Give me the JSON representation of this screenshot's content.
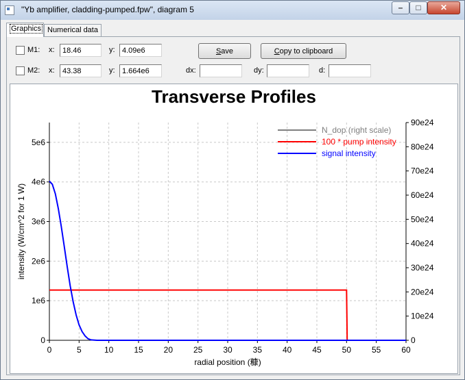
{
  "window": {
    "title": "\"Yb amplifier, cladding-pumped.fpw\", diagram 5",
    "min_glyph": "–",
    "max_glyph": "□",
    "close_glyph": "✕"
  },
  "tabs": [
    {
      "label": "Graphics"
    },
    {
      "label": "Numerical data"
    }
  ],
  "markers": {
    "m1": {
      "label": "M1:",
      "x_label": "x:",
      "x_value": "18.46",
      "y_label": "y:",
      "y_value": "4.09e6"
    },
    "m2": {
      "label": "M2:",
      "x_label": "x:",
      "x_value": "43.38",
      "y_label": "y:",
      "y_value": "1.664e6"
    },
    "dx_label": "dx:",
    "dy_label": "dy:",
    "d_label": "d:",
    "dx_value": "",
    "dy_value": "",
    "d_value": ""
  },
  "buttons": {
    "save_prefix": "",
    "save_underline": "S",
    "save_rest": "ave",
    "copy_prefix": "",
    "copy_underline": "C",
    "copy_rest": "opy to clipboard"
  },
  "chart_data": {
    "type": "line",
    "title": "Transverse Profiles",
    "xlabel": "radial position (糠)",
    "ylabel": "intensity (W/cm^2 for 1 W)",
    "xlim": [
      0,
      60
    ],
    "ylim": [
      0,
      5500000
    ],
    "y2lim": [
      0,
      9e+25
    ],
    "grid": true,
    "legend_position": "top-right",
    "x_ticks": [
      "0",
      "5",
      "10",
      "15",
      "20",
      "25",
      "30",
      "35",
      "40",
      "45",
      "50",
      "55",
      "60"
    ],
    "y_ticks": [
      "0",
      "1e6",
      "2e6",
      "3e6",
      "4e6",
      "5e6"
    ],
    "y2_ticks": [
      "0",
      "10e24",
      "20e24",
      "30e24",
      "40e24",
      "50e24",
      "60e24",
      "70e24",
      "80e24",
      "90e24"
    ],
    "series": [
      {
        "name": "N_dop (right scale)",
        "color": "#7f7f7f",
        "axis": "right",
        "points": []
      },
      {
        "name": "100 * pump intensity",
        "color": "#ff0000",
        "axis": "left",
        "points": [
          [
            0,
            1270000
          ],
          [
            50,
            1270000
          ],
          [
            50.05,
            600000
          ],
          [
            50.1,
            0
          ],
          [
            60,
            0
          ]
        ]
      },
      {
        "name": "signal intensity",
        "color": "#0000ff",
        "axis": "left",
        "points": [
          [
            0,
            4020000
          ],
          [
            0.5,
            3940000
          ],
          [
            1,
            3700000
          ],
          [
            1.5,
            3330000
          ],
          [
            2,
            2880000
          ],
          [
            2.5,
            2370000
          ],
          [
            3,
            1860000
          ],
          [
            3.5,
            1380000
          ],
          [
            4,
            970000
          ],
          [
            4.5,
            640000
          ],
          [
            5,
            390000
          ],
          [
            5.5,
            220000
          ],
          [
            6,
            110000
          ],
          [
            6.5,
            40000
          ],
          [
            7,
            10000
          ],
          [
            8,
            0
          ],
          [
            60,
            0
          ]
        ]
      }
    ]
  }
}
